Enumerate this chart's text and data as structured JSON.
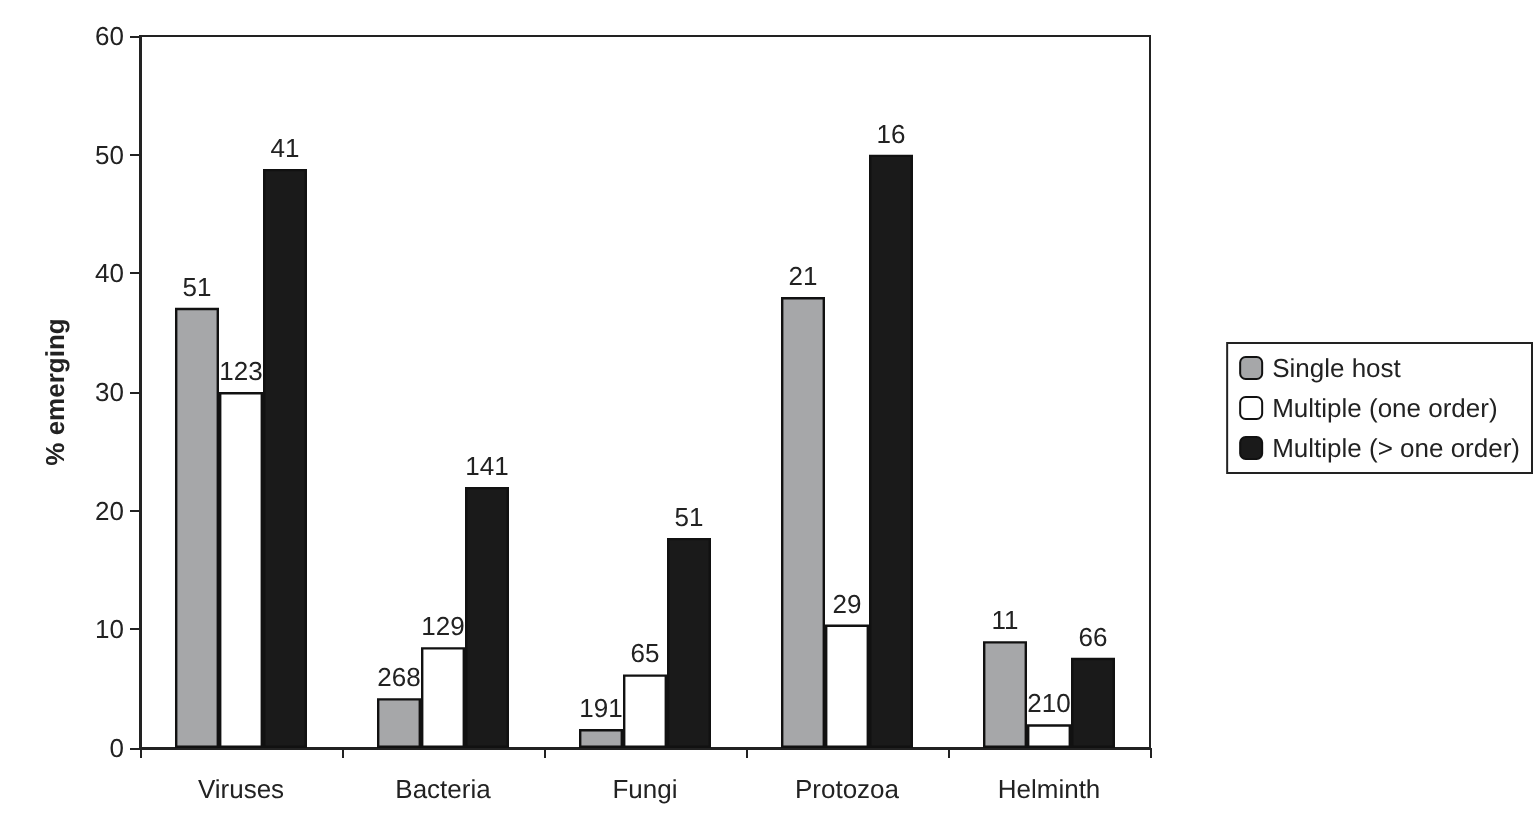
{
  "chart_data": {
    "type": "bar",
    "ylabel": "% emerging",
    "categories": [
      "Viruses",
      "Bacteria",
      "Fungi",
      "Protozoa",
      "Helminth"
    ],
    "series": [
      {
        "name": "Single host",
        "color": "#a6a7a9",
        "values": [
          37.1,
          4.2,
          1.6,
          38.0,
          9.0
        ]
      },
      {
        "name": "Multiple (one order)",
        "color": "#ffffff",
        "values": [
          30.0,
          8.5,
          6.2,
          10.4,
          2.0
        ]
      },
      {
        "name": "Multiple (> one order)",
        "color": "#1a1a1a",
        "values": [
          48.8,
          22.0,
          17.7,
          50.0,
          7.6
        ]
      }
    ],
    "annotations": [
      "51",
      "268",
      "191",
      "21",
      "11",
      "123",
      "129",
      "65",
      "29",
      "210",
      "41",
      "141",
      "51",
      "16",
      "66"
    ],
    "ylim": [
      0,
      60
    ],
    "yticks": [
      0,
      10,
      20,
      30,
      40,
      50,
      60
    ],
    "grid": false,
    "legend": "right"
  }
}
